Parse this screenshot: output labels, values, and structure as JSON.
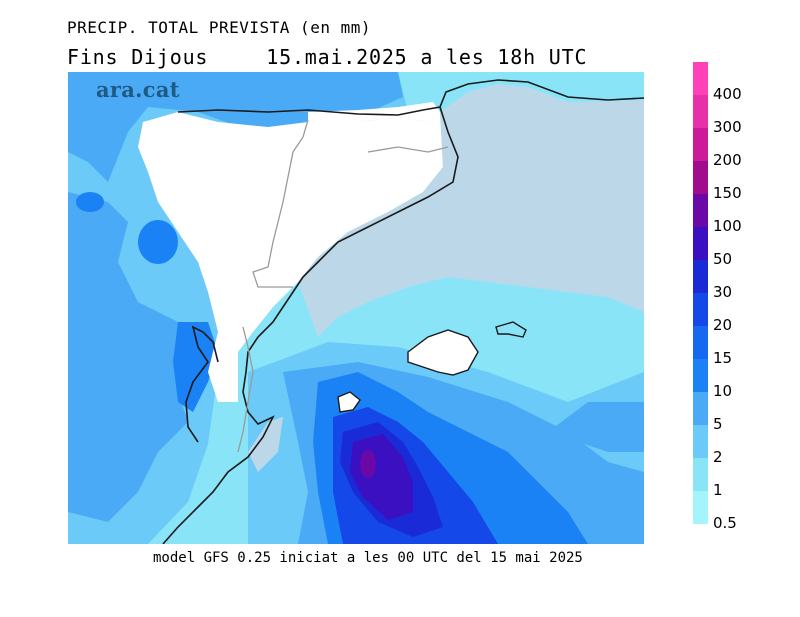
{
  "title": {
    "line1": "PRECIP. TOTAL PREVISTA (en mm)",
    "line2_day": "Fins Dijous",
    "line2_date": "15.mai.2025 a les 18h UTC"
  },
  "watermark": "ara.cat",
  "footer": "model GFS 0.25 iniciat a les 00 UTC del 15 mai 2025",
  "colors": {
    "sea_no_rain": "#bcd8e8",
    "land_no_rain": "#ffffff",
    "coast_line": "#1a1a1a",
    "border_line": "#9a9a9a"
  },
  "legend": {
    "unit": "mm",
    "levels": [
      {
        "label": "400",
        "color": "#ff40b8"
      },
      {
        "label": "300",
        "color": "#e830a8"
      },
      {
        "label": "200",
        "color": "#cc1a98"
      },
      {
        "label": "150",
        "color": "#a00c8c"
      },
      {
        "label": "100",
        "color": "#6a08a8"
      },
      {
        "label": "50",
        "color": "#3a10c0"
      },
      {
        "label": "30",
        "color": "#1a2ad6"
      },
      {
        "label": "20",
        "color": "#1448e8"
      },
      {
        "label": "15",
        "color": "#1668f0"
      },
      {
        "label": "10",
        "color": "#1a82f4"
      },
      {
        "label": "5",
        "color": "#4aaaf6"
      },
      {
        "label": "2",
        "color": "#6ccaf8"
      },
      {
        "label": "1",
        "color": "#8ae4f8"
      },
      {
        "label": "0.5",
        "color": "#a4f4fc"
      }
    ]
  }
}
